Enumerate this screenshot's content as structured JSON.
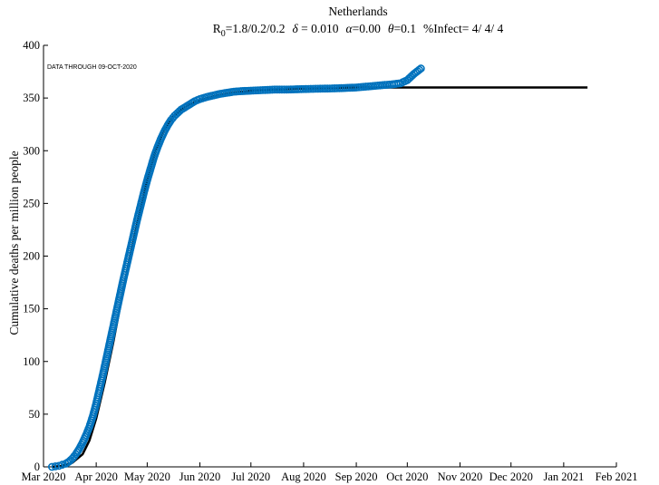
{
  "chart_data": {
    "type": "scatter",
    "title": "Netherlands",
    "subtitle": {
      "r0_symbol": "R",
      "r0_sub": "0",
      "r0_value": "=1.8/0.2/0.2",
      "delta_symbol": "δ",
      "delta_value": " = 0.010",
      "alpha_symbol": "α",
      "alpha_value": "=0.00",
      "theta_symbol": "θ",
      "theta_value": "=0.1",
      "infect": "%Infect= 4/ 4/ 4"
    },
    "annotation": "DATA THROUGH 09-OCT-2020",
    "ylabel": "Cumulative deaths per million people",
    "xlabel": "",
    "ylim": [
      0,
      400
    ],
    "xlim": [
      "2020-03-01",
      "2021-02-01"
    ],
    "yticks": [
      "0",
      "50",
      "100",
      "150",
      "200",
      "250",
      "300",
      "350",
      "400"
    ],
    "xticks": [
      {
        "date": "2020-03-01",
        "label": "Mar 2020"
      },
      {
        "date": "2020-04-01",
        "label": "Apr 2020"
      },
      {
        "date": "2020-05-01",
        "label": "May 2020"
      },
      {
        "date": "2020-06-01",
        "label": "Jun 2020"
      },
      {
        "date": "2020-07-01",
        "label": "Jul 2020"
      },
      {
        "date": "2020-08-01",
        "label": "Aug 2020"
      },
      {
        "date": "2020-09-01",
        "label": "Sep 2020"
      },
      {
        "date": "2020-10-01",
        "label": "Oct 2020"
      },
      {
        "date": "2020-11-01",
        "label": "Nov 2020"
      },
      {
        "date": "2020-12-01",
        "label": "Dec 2020"
      },
      {
        "date": "2021-01-01",
        "label": "Jan 2021"
      },
      {
        "date": "2021-02-01",
        "label": "Feb 2021"
      }
    ],
    "grid": false,
    "colors": {
      "data": "#0072BD",
      "model": "#000000"
    },
    "series": [
      {
        "kind": "model-line",
        "x": [
          "2020-03-06",
          "2020-03-12",
          "2020-03-18",
          "2020-03-24",
          "2020-03-28",
          "2020-04-01",
          "2020-04-06",
          "2020-04-11",
          "2020-04-16",
          "2020-04-21",
          "2020-04-26",
          "2020-05-01",
          "2020-05-06",
          "2020-05-11",
          "2020-05-16",
          "2020-05-21",
          "2020-05-26",
          "2020-06-01",
          "2020-06-10",
          "2020-06-20",
          "2020-07-01",
          "2020-07-15",
          "2020-08-01",
          "2020-09-01",
          "2020-10-01",
          "2020-11-01",
          "2020-12-01",
          "2021-01-01",
          "2021-01-15"
        ],
        "y": [
          0,
          1,
          4,
          12,
          25,
          46,
          80,
          118,
          160,
          200,
          238,
          272,
          300,
          320,
          332,
          339,
          344,
          348,
          352,
          355,
          357,
          358,
          359,
          360,
          360,
          360,
          360,
          360,
          360
        ]
      },
      {
        "kind": "data-points",
        "x": [
          "2020-03-06",
          "2020-03-08",
          "2020-03-10",
          "2020-03-12",
          "2020-03-14",
          "2020-03-16",
          "2020-03-18",
          "2020-03-20",
          "2020-03-22",
          "2020-03-24",
          "2020-03-26",
          "2020-03-28",
          "2020-03-30",
          "2020-04-01",
          "2020-04-03",
          "2020-04-05",
          "2020-04-07",
          "2020-04-09",
          "2020-04-11",
          "2020-04-13",
          "2020-04-15",
          "2020-04-17",
          "2020-04-19",
          "2020-04-21",
          "2020-04-23",
          "2020-04-25",
          "2020-04-27",
          "2020-04-29",
          "2020-05-01",
          "2020-05-03",
          "2020-05-05",
          "2020-05-07",
          "2020-05-09",
          "2020-05-11",
          "2020-05-13",
          "2020-05-15",
          "2020-05-17",
          "2020-05-19",
          "2020-05-21",
          "2020-05-23",
          "2020-05-25",
          "2020-05-27",
          "2020-05-29",
          "2020-06-01",
          "2020-06-05",
          "2020-06-09",
          "2020-06-13",
          "2020-06-17",
          "2020-06-21",
          "2020-06-25",
          "2020-07-01",
          "2020-07-08",
          "2020-07-15",
          "2020-07-22",
          "2020-08-01",
          "2020-08-08",
          "2020-08-15",
          "2020-08-22",
          "2020-09-01",
          "2020-09-08",
          "2020-09-15",
          "2020-09-22",
          "2020-09-27",
          "2020-10-01",
          "2020-10-05",
          "2020-10-09"
        ],
        "y": [
          0,
          0.5,
          1,
          2,
          3,
          5,
          8,
          12,
          17,
          23,
          30,
          38,
          48,
          60,
          74,
          88,
          103,
          118,
          133,
          148,
          163,
          178,
          192,
          206,
          220,
          234,
          247,
          260,
          272,
          283,
          294,
          303,
          311,
          318,
          324,
          329,
          333,
          336,
          339,
          341,
          343,
          345,
          347,
          349,
          351,
          352.5,
          354,
          355,
          356,
          356.5,
          357,
          357.5,
          358,
          358,
          358.5,
          358.8,
          359,
          359.3,
          360,
          361,
          362,
          363,
          364,
          367,
          373,
          378
        ]
      }
    ]
  }
}
